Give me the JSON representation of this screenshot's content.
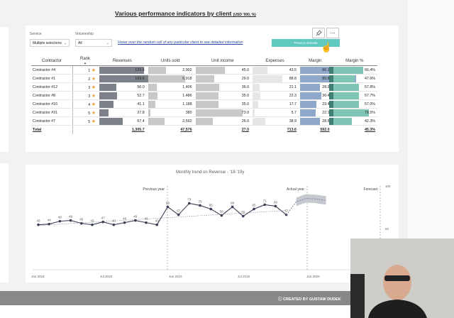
{
  "report": {
    "title": "Various performance indicators by client",
    "title_unit": "(USD '000, %)"
  },
  "slicers": {
    "service_label": "Service",
    "service_value": "Multiple selections",
    "volumeship_label": "Volumeship",
    "volumeship_value": "All"
  },
  "hint_text": "Hover over the random cell of any particular client to see detailed information",
  "press_button_label": "Press to activate",
  "icons": {
    "pin": "pin-icon",
    "more": "more-options-icon",
    "star": "star-icon",
    "info": "info-icon"
  },
  "table": {
    "headers": [
      "Contractor",
      "Rank",
      "Revenues",
      "Units sold",
      "Unit income",
      "Expenses",
      "Margin",
      "Margin %"
    ],
    "rows": [
      {
        "contractor": "Contractor #4",
        "rank": "1",
        "revenues": "129.6",
        "units": "2,902",
        "income": "45.0",
        "expenses": "43.5",
        "margin": "86.1",
        "margin_pct": "66.4%"
      },
      {
        "contractor": "Contractor #1",
        "rank": "2",
        "revenues": "169.6",
        "units": "5,918",
        "income": "29.0",
        "expenses": "88.8",
        "margin": "80.8",
        "margin_pct": "47.6%"
      },
      {
        "contractor": "Contractor #12",
        "rank": "3",
        "revenues": "50.0",
        "units": "1,406",
        "income": "36.0",
        "expenses": "21.1",
        "margin": "28.9",
        "margin_pct": "57.8%"
      },
      {
        "contractor": "Contractor #8",
        "rank": "3",
        "revenues": "52.7",
        "units": "1,486",
        "income": "35.0",
        "expenses": "22.3",
        "margin": "30.4",
        "margin_pct": "57.7%"
      },
      {
        "contractor": "Contractor #16",
        "rank": "4",
        "revenues": "41.1",
        "units": "1,188",
        "income": "35.0",
        "expenses": "17.7",
        "margin": "23.4",
        "margin_pct": "57.0%"
      },
      {
        "contractor": "Contractor #31",
        "rank": "5",
        "revenues": "27.8",
        "units": "380",
        "income": "73.0",
        "expenses": "5.7",
        "margin": "22.1",
        "margin_pct": "79.5%"
      },
      {
        "contractor": "Contractor #7",
        "rank": "5",
        "revenues": "67.4",
        "units": "2,592",
        "income": "26.0",
        "expenses": "38.9",
        "margin": "28.5",
        "margin_pct": "42.3%"
      }
    ],
    "total": {
      "contractor": "Total",
      "revenues": "1,305.7",
      "units": "47,576",
      "income": "27.0",
      "expenses": "713.6",
      "margin": "592.0",
      "margin_pct": "45.3%"
    }
  },
  "chart_data": {
    "type": "line",
    "title": "Monthly trend on Revenue - '18-'19y",
    "section_labels": [
      "Previous year",
      "Actual year",
      "Forecast"
    ],
    "x_tick_labels": [
      "Jan 2018",
      "Jul 2018",
      "Jan 2019",
      "Jul 2019",
      "Jan 2020",
      "Jul 2020"
    ],
    "y_tick_labels": [
      "100",
      "50"
    ],
    "series": [
      {
        "name": "Revenue",
        "values": [
          43,
          44,
          48,
          49,
          45,
          43,
          47,
          43,
          46,
          49,
          46,
          43,
          68,
          57,
          73,
          70,
          65,
          56,
          68,
          55,
          65,
          71,
          69,
          57
        ]
      },
      {
        "name": "Forecast",
        "values": [
          75,
          80,
          79,
          77
        ]
      }
    ]
  },
  "footer": {
    "credit": "CREATED BY GUSTAW DUDEK"
  }
}
